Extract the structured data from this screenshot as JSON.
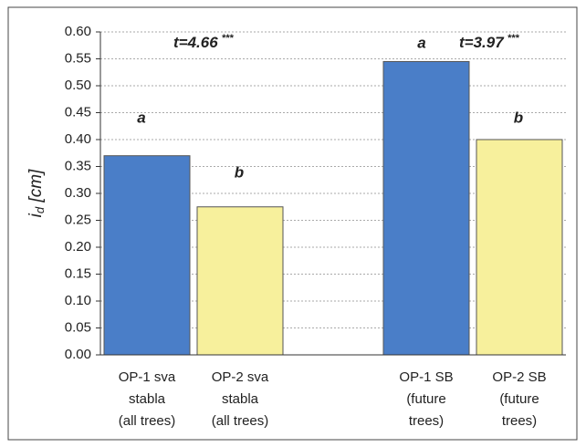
{
  "chart_data": {
    "type": "bar",
    "y_label": {
      "main": "i",
      "sub": "d",
      "unit": "[cm]"
    },
    "categories": [
      [
        "OP-1 sva",
        "stabla",
        "(all trees)"
      ],
      [
        "OP-2 sva",
        "stabla",
        "(all trees)"
      ],
      [
        "OP-1 SB",
        "(future",
        "trees)"
      ],
      [
        "OP-2 SB",
        "(future",
        "trees)"
      ]
    ],
    "values": [
      0.37,
      0.275,
      0.545,
      0.4
    ],
    "colors": [
      "#4a7ec8",
      "#f7f09c",
      "#4a7ec8",
      "#f7f09c"
    ],
    "letters": [
      "a",
      "b",
      "a",
      "b"
    ],
    "t_tests": [
      {
        "text": "t=4.66",
        "sig": "***"
      },
      {
        "text": "t=3.97",
        "sig": "***"
      }
    ],
    "ylim": [
      0,
      0.6
    ],
    "yticks": [
      {
        "value": 0,
        "label": "0.00"
      },
      {
        "value": 0.05,
        "label": "0.05"
      },
      {
        "value": 0.1,
        "label": "0.10"
      },
      {
        "value": 0.15,
        "label": "0.15"
      },
      {
        "value": 0.2,
        "label": "0.20"
      },
      {
        "value": 0.25,
        "label": "0.25"
      },
      {
        "value": 0.3,
        "label": "0.30"
      },
      {
        "value": 0.35,
        "label": "0.35"
      },
      {
        "value": 0.4,
        "label": "0.40"
      },
      {
        "value": 0.45,
        "label": "0.45"
      },
      {
        "value": 0.5,
        "label": "0.50"
      },
      {
        "value": 0.55,
        "label": "0.55"
      },
      {
        "value": 0.6,
        "label": "0.60"
      }
    ],
    "grid": true
  }
}
